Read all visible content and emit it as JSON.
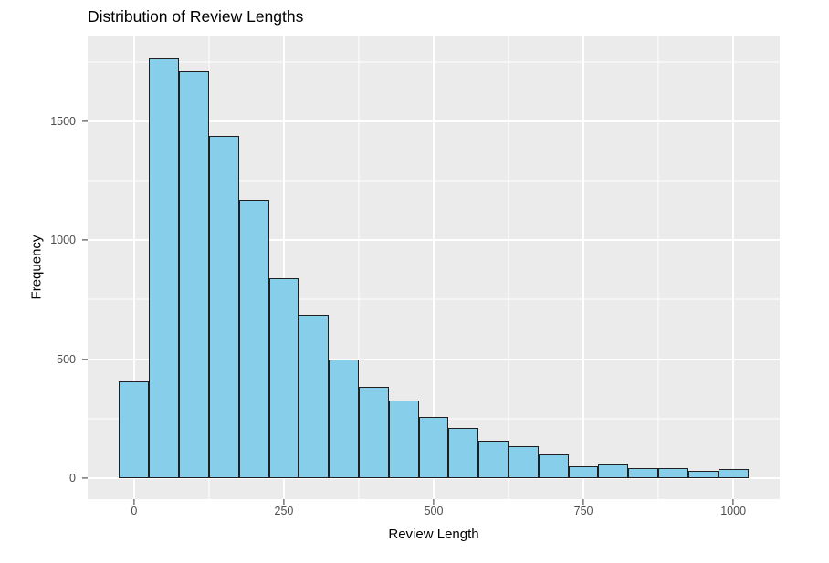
{
  "figure": {
    "title": "Distribution of Review Lengths",
    "x_axis_title": "Review Length",
    "y_axis_title": "Frequency"
  },
  "chart_data": {
    "type": "bar",
    "subtype": "histogram",
    "title": "Distribution of Review Lengths",
    "xlabel": "Review Length",
    "ylabel": "Frequency",
    "bin_width": 50,
    "bin_centers": [
      0,
      50,
      100,
      150,
      200,
      250,
      300,
      350,
      400,
      450,
      500,
      550,
      600,
      650,
      700,
      750,
      800,
      850,
      900,
      950,
      1000
    ],
    "values": [
      405,
      1765,
      1710,
      1440,
      1170,
      840,
      685,
      497,
      385,
      325,
      255,
      212,
      156,
      133,
      99,
      51,
      58,
      41,
      42,
      31,
      37
    ],
    "x_ticks": [
      0,
      250,
      500,
      750,
      1000
    ],
    "y_ticks": [
      0,
      500,
      1000,
      1500
    ],
    "x_minor_ticks": [
      125,
      375,
      625,
      875
    ],
    "y_minor_ticks": [
      250,
      750,
      1250,
      1750
    ],
    "xlim": [
      -77.5,
      1077.5
    ],
    "ylim": [
      -88.4,
      1856.4
    ],
    "grid": "major-and-minor-white-on-gray",
    "legend_position": "none"
  },
  "style": {
    "page_bg": "#FFFFFF",
    "panel_bg": "#EBEBEB",
    "grid_color": "#FFFFFF",
    "bar_fill": "#87CEEB",
    "bar_border": "#1F1F1F",
    "tick_color": "#333333",
    "tick_label_color": "#4D4D4D",
    "title_color": "#000000"
  }
}
